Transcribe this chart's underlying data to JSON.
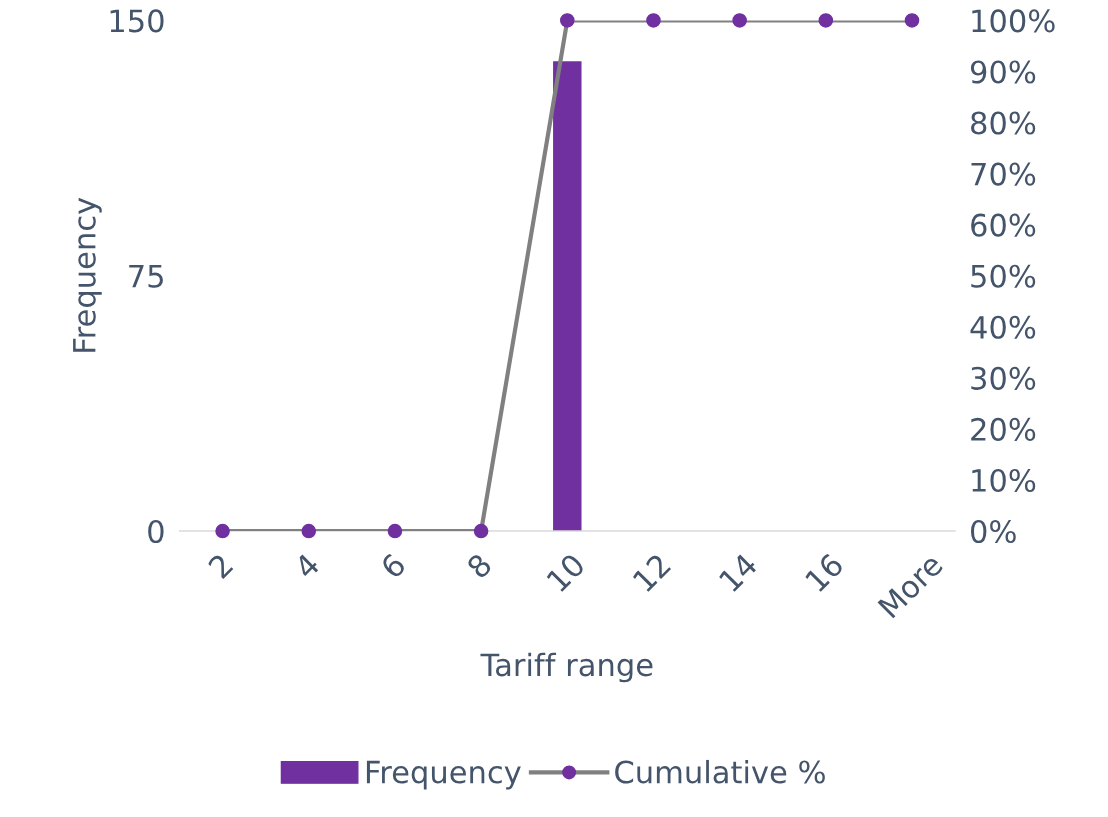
{
  "chart_data": {
    "type": "bar",
    "xlabel": "Tariff range",
    "ylabel": "Frequency",
    "categories": [
      "2",
      "4",
      "6",
      "8",
      "10",
      "12",
      "14",
      "16",
      "More"
    ],
    "series": [
      {
        "name": "Frequency",
        "color": "#7030a0",
        "values": [
          0,
          0,
          0,
          0,
          138,
          0,
          0,
          0,
          0
        ]
      },
      {
        "name": "Cumulative %",
        "type": "line",
        "axis": "y2",
        "color": "#808080",
        "colors": [
          "#7030a0",
          "#7030a0",
          "#7030a0",
          "#7030a0",
          "#7030a0",
          "#7030a0",
          "#7030a0",
          "#7030a0",
          "#7030a0"
        ],
        "values": [
          0,
          0,
          0,
          0,
          100,
          100,
          100,
          100,
          100
        ]
      }
    ],
    "ylim": [
      0,
      150
    ],
    "yticks": [
      0,
      75,
      150
    ],
    "y2lim": [
      0,
      100
    ],
    "y2ticks": [
      {
        "value": 0,
        "label": "0%"
      },
      {
        "value": 10,
        "label": "10%"
      },
      {
        "value": 20,
        "label": "20%"
      },
      {
        "value": 30,
        "label": "30%"
      },
      {
        "value": 40,
        "label": "40%"
      },
      {
        "value": 50,
        "label": "50%"
      },
      {
        "value": 60,
        "label": "60%"
      },
      {
        "value": 70,
        "label": "70%"
      },
      {
        "value": 80,
        "label": "80%"
      },
      {
        "value": 90,
        "label": "90%"
      },
      {
        "value": 100,
        "label": "100%"
      }
    ],
    "marker": "circle",
    "line_style": "solid",
    "grid": false,
    "legend": "bottom"
  }
}
